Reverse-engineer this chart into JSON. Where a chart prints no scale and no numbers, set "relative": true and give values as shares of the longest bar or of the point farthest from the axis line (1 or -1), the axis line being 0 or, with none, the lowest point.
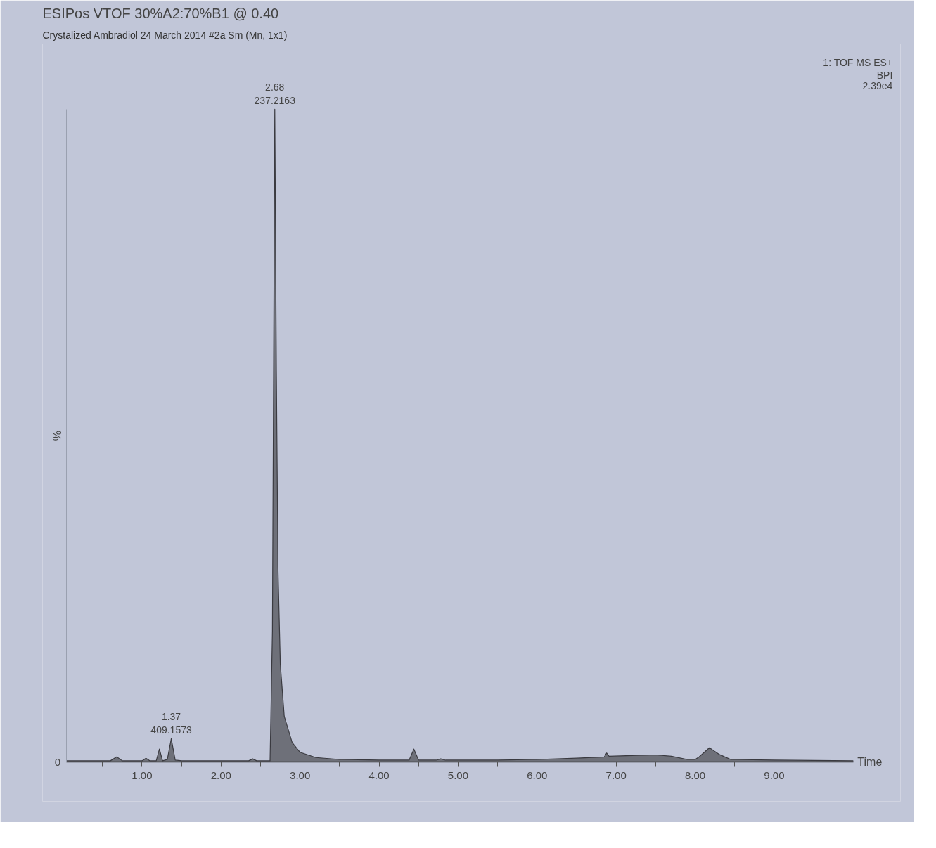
{
  "chart_data": {
    "type": "area",
    "title": "ESIPos VTOF 30%A2:70%B1 @ 0.40",
    "subtitle": "Crystalized Ambradiol 24 March 2014 #2a Sm (Mn, 1x1)",
    "xlabel": "Time",
    "ylabel": "%",
    "relative": true,
    "grid": false,
    "marker": "none",
    "xlim": [
      0.04,
      10.0
    ],
    "xticks": [
      {
        "value": 0.5,
        "label": null
      },
      {
        "value": 1,
        "label": "1.00"
      },
      {
        "value": 1.5,
        "label": null
      },
      {
        "value": 2,
        "label": "2.00"
      },
      {
        "value": 2.5,
        "label": null
      },
      {
        "value": 3,
        "label": "3.00"
      },
      {
        "value": 3.5,
        "label": null
      },
      {
        "value": 4,
        "label": "4.00"
      },
      {
        "value": 4.5,
        "label": null
      },
      {
        "value": 5,
        "label": "5.00"
      },
      {
        "value": 5.5,
        "label": null
      },
      {
        "value": 6,
        "label": "6.00"
      },
      {
        "value": 6.5,
        "label": null
      },
      {
        "value": 7,
        "label": "7.00"
      },
      {
        "value": 7.5,
        "label": null
      },
      {
        "value": 8,
        "label": "8.00"
      },
      {
        "value": 8.5,
        "label": null
      },
      {
        "value": 9,
        "label": "9.00"
      },
      {
        "value": 9.5,
        "label": null
      }
    ],
    "x": [
      0.04,
      0.6,
      0.68,
      0.75,
      1.0,
      1.05,
      1.1,
      1.18,
      1.22,
      1.26,
      1.32,
      1.37,
      1.42,
      1.5,
      1.65,
      2.0,
      2.35,
      2.4,
      2.45,
      2.62,
      2.65,
      2.68,
      2.7,
      2.72,
      2.75,
      2.8,
      2.9,
      3.0,
      3.2,
      3.5,
      4.0,
      4.38,
      4.44,
      4.5,
      4.72,
      4.78,
      4.84,
      5.5,
      6.0,
      6.5,
      6.85,
      6.88,
      6.91,
      7.2,
      7.5,
      7.7,
      7.9,
      8.0,
      8.05,
      8.18,
      8.3,
      8.45,
      9.0,
      10.0
    ],
    "series": [
      {
        "color": "#6e7079",
        "values": [
          0.002,
          0.002,
          0.008,
          0.002,
          0.002,
          0.006,
          0.002,
          0.002,
          0.02,
          0.002,
          0.004,
          0.036,
          0.003,
          0.002,
          0.002,
          0.002,
          0.002,
          0.005,
          0.002,
          0.002,
          0.2,
          1,
          0.6,
          0.3,
          0.15,
          0.07,
          0.03,
          0.015,
          0.007,
          0.004,
          0.003,
          0.003,
          0.02,
          0.003,
          0.003,
          0.005,
          0.003,
          0.003,
          0.004,
          0.006,
          0.008,
          0.014,
          0.009,
          0.01,
          0.011,
          0.009,
          0.004,
          0.004,
          0.008,
          0.022,
          0.012,
          0.004,
          0.003,
          0.002
        ]
      }
    ],
    "annotations": [
      {
        "text": "2.68\n237.2163",
        "x": 2.68,
        "y": 1
      },
      {
        "text": "1.37\n409.1573",
        "x": 1.37,
        "y": 0.036
      },
      "0",
      "1: TOF MS ES+",
      "BPI",
      "2.39e4"
    ]
  }
}
